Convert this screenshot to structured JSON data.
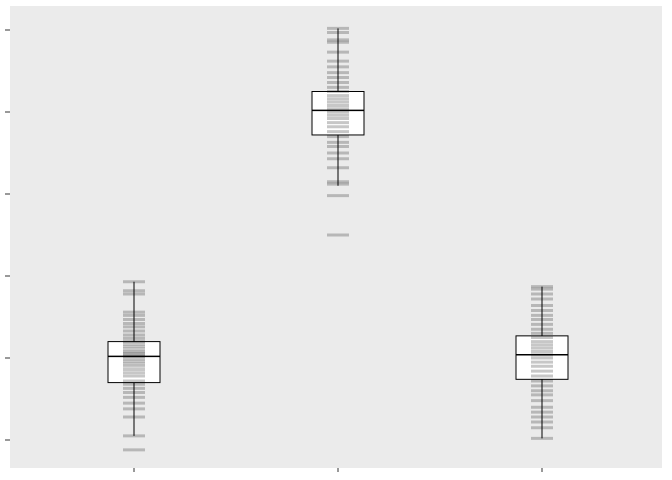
{
  "chart_data": {
    "type": "boxplot",
    "title": "",
    "xlabel": "",
    "ylabel": "",
    "ylim": [
      -0.2,
      5.4
    ],
    "yticks": [
      0,
      1,
      2,
      3,
      4,
      5
    ],
    "grid": false,
    "legend": "none",
    "categories": [
      "",
      "",
      ""
    ],
    "boxes": [
      {
        "whisker_low": 0.05,
        "q1": 0.7,
        "median": 1.02,
        "q3": 1.2,
        "whisker_high": 1.93
      },
      {
        "whisker_low": 3.1,
        "q1": 3.72,
        "median": 4.02,
        "q3": 4.25,
        "whisker_high": 5.02
      },
      {
        "whisker_low": 0.02,
        "q1": 0.74,
        "median": 1.04,
        "q3": 1.27,
        "whisker_high": 1.87
      }
    ],
    "points": [
      [
        -0.12,
        0.05,
        0.28,
        0.38,
        0.45,
        0.52,
        0.58,
        0.63,
        0.68,
        0.72,
        0.78,
        0.82,
        0.86,
        0.9,
        0.93,
        0.96,
        0.99,
        1.02,
        1.04,
        1.06,
        1.08,
        1.11,
        1.14,
        1.17,
        1.2,
        1.24,
        1.28,
        1.33,
        1.38,
        1.42,
        1.47,
        1.52,
        1.56,
        1.78,
        1.82,
        1.93
      ],
      [
        2.5,
        2.98,
        3.12,
        3.15,
        3.32,
        3.43,
        3.5,
        3.58,
        3.63,
        3.7,
        3.76,
        3.82,
        3.87,
        3.92,
        3.96,
        4.0,
        4.04,
        4.08,
        4.12,
        4.16,
        4.2,
        4.25,
        4.3,
        4.36,
        4.42,
        4.48,
        4.55,
        4.62,
        4.73,
        4.85,
        4.88,
        4.97,
        5.02
      ],
      [
        0.02,
        0.15,
        0.22,
        0.28,
        0.34,
        0.4,
        0.48,
        0.55,
        0.6,
        0.66,
        0.72,
        0.78,
        0.84,
        0.9,
        0.95,
        1.0,
        1.04,
        1.08,
        1.12,
        1.16,
        1.2,
        1.25,
        1.3,
        1.35,
        1.41,
        1.47,
        1.52,
        1.58,
        1.64,
        1.72,
        1.78,
        1.84,
        1.87
      ]
    ]
  }
}
